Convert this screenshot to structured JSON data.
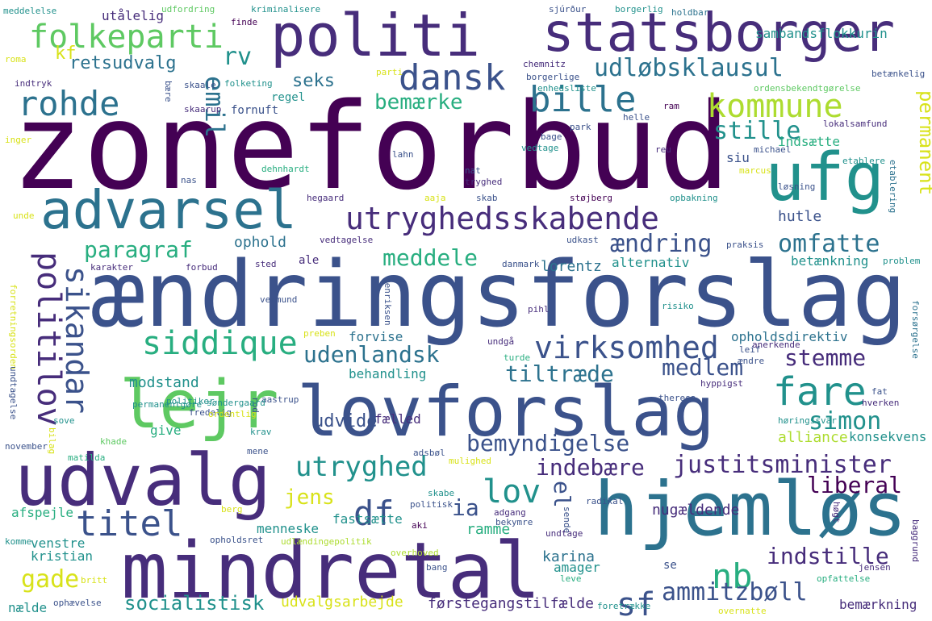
{
  "words": {
    "zoneforbud": "zoneforbud",
    "aendringsforslag": "ændringsforslag",
    "politi": "politi",
    "statsborger": "statsborger",
    "lovforslag": "lovforslag",
    "mindretal": "mindretal",
    "udvalg": "udvalg",
    "hjemloes": "hjemløs",
    "lejr": "lejr",
    "advarsel": "advarsel",
    "ufg": "ufg",
    "utryghedsskabende": "utryghedsskabende",
    "folkeparti": "folkeparti",
    "dansk": "dansk",
    "rohde": "rohde",
    "bille": "bille",
    "kommune": "kommune",
    "udloebsklausul": "udløbsklausul",
    "politilov": "politilov",
    "sikandar": "sikandar",
    "virksomhed": "virksomhed",
    "siddique": "siddique",
    "titel": "titel",
    "df": "df",
    "sf": "sf",
    "nb": "nb",
    "lov": "lov",
    "utryghed": "utryghed",
    "fare": "fare",
    "justitsminister": "justitsminister",
    "ammitzboell": "ammitzbøll",
    "emil": "emil",
    "rv": "rv",
    "kf": "kf",
    "retsudvalg": "retsudvalg",
    "seks": "seks",
    "bemaerke": "bemærke",
    "stille": "stille",
    "permanent": "permanent",
    "paragraf": "paragraf",
    "aendring": "ændring",
    "omfatte": "omfatte",
    "meddele": "meddele",
    "udenlandsk": "udenlandsk",
    "medlem": "medlem",
    "stemme": "stemme",
    "tiltraede": "tiltræde",
    "bemyndigelse": "bemyndigelse",
    "simon": "simon",
    "indebaere": "indebære",
    "liberal": "liberal",
    "jens": "jens",
    "ia": "ia",
    "el": "el",
    "indstille": "indstille",
    "gade": "gade",
    "socialistisk": "socialistisk",
    "udvide": "udvide",
    "faelled": "fælled",
    "alliance": "alliance",
    "konsekvens": "konsekvens",
    "lorentz": "lorentz",
    "hutle": "hutle",
    "ophold": "ophold",
    "alternativ": "alternativ",
    "betaenkning": "betænkning",
    "opholdsdirektiv": "opholdsdirektiv",
    "forvise": "forvise",
    "behandling": "behandling",
    "modstand": "modstand",
    "give": "give",
    "karina": "karina",
    "amager": "amager",
    "kristian": "kristian",
    "venstre": "venstre",
    "ramme": "ramme",
    "fastsaette": "fastsætte",
    "menneske": "menneske",
    "udvalgsarbejde": "udvalgsarbejde",
    "foerstegangstilfaelde": "førstegangstilfælde",
    "bemaerkning": "bemærkning",
    "nugaeldende": "nugældende",
    "afspejle": "afspejle",
    "naelde": "nælde",
    "udtaelig": "utålelig",
    "fornuft": "fornuft",
    "regel": "regel",
    "sambandsflokkurin": "sambandsflokkurin",
    "indsaette": "indsætte",
    "siu": "siu",
    "meddelelse": "meddelelse",
    "udfordring": "udfordring",
    "kriminalisere": "kriminalisere",
    "sjurdur": "sjúrður",
    "borgerlig": "borgerlig",
    "holdbar": "holdbar",
    "finde": "finde",
    "roma": "roma",
    "chemnitz": "chemnitz",
    "borgerlige": "borgerlige",
    "betaenkelig": "betænkelig",
    "indtryk": "indtryk",
    "baere": "bære",
    "skaale": "skaale",
    "parti": "parti",
    "folketing": "folketing",
    "enhedsliste": "enhedsliste",
    "ordensbekendtgoerelse": "ordensbekendtgørelse",
    "skaarup": "skaarup",
    "ram": "ram",
    "helle": "helle",
    "park": "park",
    "lokalsamfund": "lokalsamfund",
    "inger": "inger",
    "lahn": "lahn",
    "bage": "bage",
    "reu": "reu",
    "michael": "michael",
    "etablere": "etablere",
    "etablering": "etablering",
    "vedtage": "vedtage",
    "dehnhardt": "dehnhardt",
    "nat": "nat",
    "tryghed": "tryghed",
    "marcus": "marcus",
    "nas": "nas",
    "hegaard": "hegaard",
    "aaja": "aaja",
    "skab": "skab",
    "stoejberg": "støjberg",
    "opbakning": "opbakning",
    "loesning": "løsning",
    "unde": "unde",
    "vedtagelse": "vedtagelse",
    "udkast": "udkast",
    "praksis": "praksis",
    "karakter": "karakter",
    "forbud": "forbud",
    "sted": "sted",
    "ale": "ale",
    "danmark": "danmark",
    "problem": "problem",
    "forretningsorden": "forretningsorden",
    "vermund": "vermund",
    "henriksen": "henriksen",
    "pihl": "pihl",
    "risiko": "risiko",
    "forsoergelse": "forsørgelse",
    "preben": "preben",
    "undgaa": "undgå",
    "turde": "turde",
    "leif": "leif",
    "anerkende": "anerkende",
    "aendre": "ændre",
    "politiker": "politiker",
    "aastrup": "aastrup",
    "theresa": "theresa",
    "hyppigst": "hyppigst",
    "fat": "fat",
    "hverken": "hverken",
    "undtagelse": "undtagelse",
    "fredelig": "fredelig",
    "rod": "rod",
    "permanentgoere": "permanentgøre",
    "soendergaard": "søndergaard",
    "ordentlig": "ordentlig",
    "sove": "sove",
    "hoeringssvar": "høringssvar",
    "november": "november",
    "bilag": "bilag",
    "khade": "khade",
    "krav": "krav",
    "mene": "mene",
    "adsboel": "adsbøl",
    "matilda": "matilda",
    "mulighed": "mulighed",
    "skabe": "skabe",
    "radikal": "radikal",
    "berg": "berg",
    "politisk": "politisk",
    "adgang": "adgang",
    "bekymre": "bekymre",
    "sende": "sende",
    "hoegt": "høgt",
    "baggrund": "baggrund",
    "aki": "aki",
    "undtage": "undtage",
    "opholdsret": "opholdsret",
    "udlaendingepolitik": "udlændingepolitik",
    "overhoved": "overhoved",
    "komme": "komme",
    "bang": "bang",
    "leve": "leve",
    "jensen": "jensen",
    "opfattelse": "opfattelse",
    "britt": "britt",
    "ophaevelse": "ophævelse",
    "se": "se",
    "foretraekke": "foretrække",
    "overnatte": "overnatte"
  }
}
